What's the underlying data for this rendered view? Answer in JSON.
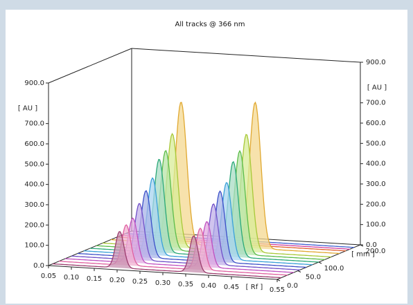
{
  "chart_data": {
    "type": "line",
    "title": "All tracks @ 366 nm",
    "x_axis": {
      "label": "[ Rf ]",
      "min": 0.05,
      "max": 0.55,
      "ticks": [
        "0.05",
        "0.10",
        "0.15",
        "0.20",
        "0.25",
        "0.30",
        "0.35",
        "0.40",
        "0.45",
        "0.55"
      ]
    },
    "y_axis": {
      "label": "[ AU ]",
      "min": 0,
      "max": 900,
      "ticks": [
        "0.0",
        "100.0",
        "200.0",
        "300.0",
        "400.0",
        "500.0",
        "600.0",
        "700.0",
        "900.0"
      ]
    },
    "y_axis_right": {
      "label": "[ AU ]",
      "ticks": [
        "0.0",
        "100.0",
        "200.0",
        "300.0",
        "400.0",
        "500.0",
        "600.0",
        "700.0",
        "900.0"
      ]
    },
    "z_axis": {
      "label": "[ mm ]",
      "min": 0,
      "max": 200,
      "ticks": [
        "0.0",
        "50.0",
        "100.0",
        "200.0"
      ]
    },
    "peaks_rf": [
      0.196,
      0.358
    ],
    "peak_sigma_rf": 0.009,
    "track_colors": [
      "#9c3c6e",
      "#e060a0",
      "#c050c0",
      "#3c50c8",
      "#3aa0d8",
      "#2aa878",
      "#5cbc4a",
      "#a8c838",
      "#e0a830",
      "#e06030"
    ],
    "series": [
      {
        "z": 10,
        "color": "#9c3c6e",
        "fill": "#c890b0",
        "peaks": [
          180,
          180
        ]
      },
      {
        "z": 25,
        "color": "#e060a0",
        "fill": "#f0b0d0",
        "peaks": [
          200,
          205
        ]
      },
      {
        "z": 40,
        "color": "#c050c0",
        "fill": "#e0a8e0",
        "peaks": [
          220,
          225
        ]
      },
      {
        "z": 55,
        "color": "#7050c8",
        "fill": "#c0b0e8",
        "peaks": [
          280,
          300
        ]
      },
      {
        "z": 70,
        "color": "#3c50c8",
        "fill": "#a8b4e8",
        "peaks": [
          330,
          350
        ]
      },
      {
        "z": 85,
        "color": "#3aa0d8",
        "fill": "#a8d4f0",
        "peaks": [
          380,
          380
        ]
      },
      {
        "z": 100,
        "color": "#2aa878",
        "fill": "#a8dcc4",
        "peaks": [
          460,
          470
        ]
      },
      {
        "z": 115,
        "color": "#5cbc4a",
        "fill": "#b8e4a8",
        "peaks": [
          490,
          510
        ]
      },
      {
        "z": 130,
        "color": "#a8c838",
        "fill": "#d8ec98",
        "peaks": [
          560,
          580
        ]
      },
      {
        "z": 150,
        "color": "#e0a830",
        "fill": "#f4d890",
        "peaks": [
          700,
          720
        ]
      },
      {
        "z": 165,
        "color": "#e06030",
        "fill": "#f0b090",
        "peaks": [
          0,
          0
        ]
      },
      {
        "z": 175,
        "color": "#d040a0",
        "fill": "#eaa0d0",
        "peaks": [
          0,
          0
        ]
      },
      {
        "z": 185,
        "color": "#4060d0",
        "fill": "#a8b8ec",
        "peaks": [
          0,
          0
        ]
      }
    ]
  }
}
